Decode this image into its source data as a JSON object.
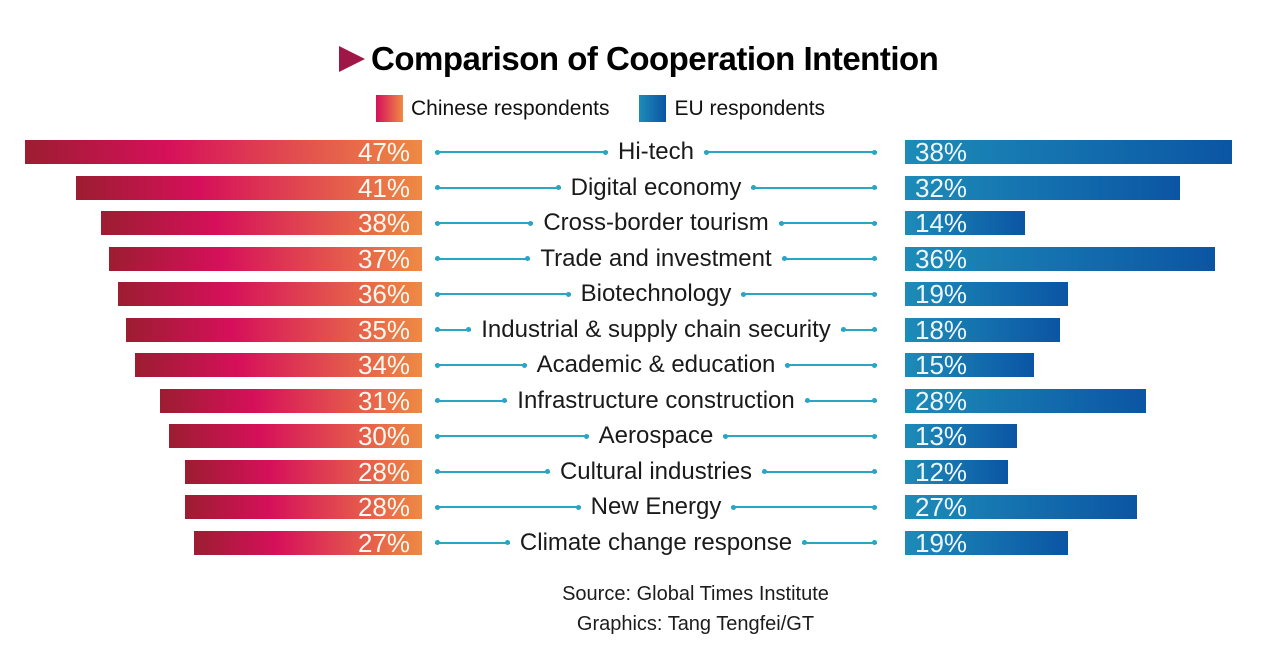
{
  "header": {
    "title": "Comparison of Cooperation Intention"
  },
  "legend": {
    "items": [
      {
        "label": "Chinese respondents",
        "swatch": "chinese-gradient"
      },
      {
        "label": "EU respondents",
        "swatch": "eu-gradient"
      }
    ]
  },
  "chart_data": {
    "type": "bar",
    "layout": "horizontal-mirrored",
    "unit": "%",
    "categories": [
      "Hi-tech",
      "Digital economy",
      "Cross-border tourism",
      "Trade and investment",
      "Biotechnology",
      "Industrial & supply chain security",
      "Academic & education",
      "Infrastructure construction",
      "Aerospace",
      "Cultural industries",
      "New Energy",
      "Climate change response"
    ],
    "series": [
      {
        "name": "Chinese respondents",
        "values": [
          47,
          41,
          38,
          37,
          36,
          35,
          34,
          31,
          30,
          28,
          28,
          27
        ]
      },
      {
        "name": "EU respondents",
        "values": [
          38,
          32,
          14,
          36,
          19,
          18,
          15,
          28,
          13,
          12,
          27,
          19
        ]
      }
    ],
    "rows": [
      {
        "category": "Hi-tech",
        "chinese": {
          "value": 47,
          "display": "47%"
        },
        "eu": {
          "value": 38,
          "display": "38%"
        }
      },
      {
        "category": "Digital economy",
        "chinese": {
          "value": 41,
          "display": "41%"
        },
        "eu": {
          "value": 32,
          "display": "32%"
        }
      },
      {
        "category": "Cross-border tourism",
        "chinese": {
          "value": 38,
          "display": "38%"
        },
        "eu": {
          "value": 14,
          "display": "14%"
        }
      },
      {
        "category": "Trade and investment",
        "chinese": {
          "value": 37,
          "display": "37%"
        },
        "eu": {
          "value": 36,
          "display": "36%"
        }
      },
      {
        "category": "Biotechnology",
        "chinese": {
          "value": 36,
          "display": "36%"
        },
        "eu": {
          "value": 19,
          "display": "19%"
        }
      },
      {
        "category": "Industrial & supply chain security",
        "chinese": {
          "value": 35,
          "display": "35%"
        },
        "eu": {
          "value": 18,
          "display": "18%"
        }
      },
      {
        "category": "Academic & education",
        "chinese": {
          "value": 34,
          "display": "34%"
        },
        "eu": {
          "value": 15,
          "display": "15%"
        }
      },
      {
        "category": "Infrastructure construction",
        "chinese": {
          "value": 31,
          "display": "31%"
        },
        "eu": {
          "value": 28,
          "display": "28%"
        }
      },
      {
        "category": "Aerospace",
        "chinese": {
          "value": 30,
          "display": "30%"
        },
        "eu": {
          "value": 13,
          "display": "13%"
        }
      },
      {
        "category": "Cultural industries",
        "chinese": {
          "value": 28,
          "display": "28%"
        },
        "eu": {
          "value": 12,
          "display": "12%"
        }
      },
      {
        "category": "New Energy",
        "chinese": {
          "value": 28,
          "display": "28%"
        },
        "eu": {
          "value": 27,
          "display": "27%"
        }
      },
      {
        "category": "Climate change response",
        "chinese": {
          "value": 27,
          "display": "27%"
        },
        "eu": {
          "value": 19,
          "display": "19%"
        }
      }
    ]
  },
  "footer": {
    "source": "Source: Global Times Institute",
    "credit": "Graphics: Tang Tengfei/GT"
  },
  "colors": {
    "accent": "#9e1747",
    "cn_dark": "#9c1d31",
    "cn_mid": "#d6105a",
    "cn_light": "#ee8a43",
    "eu_light": "#1d8cb8",
    "eu_dark": "#0b55a4",
    "line": "#2aa6c4",
    "title_text": "#000000",
    "label_text": "#1a1a1a",
    "value_text_cn": "#fdf8f0",
    "value_text_eu": "#eef6fb"
  }
}
